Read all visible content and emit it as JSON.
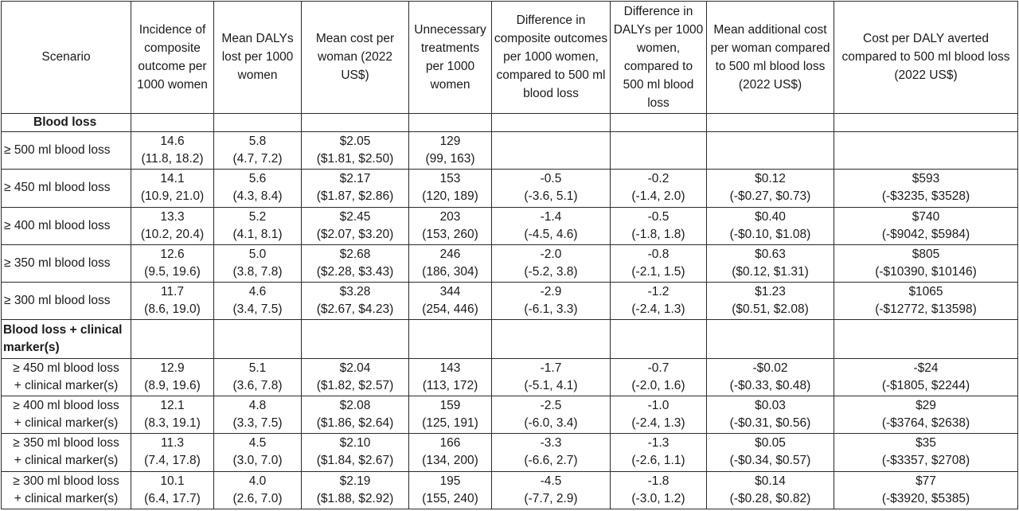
{
  "headers": [
    "Scenario",
    "Incidence of composite outcome per 1000 women",
    "Mean DALYs lost per 1000 women",
    "Mean cost per woman (2022 US$)",
    "Unnecessary treatments per 1000 women",
    "Difference in composite outcomes per 1000 women, compared to 500 ml blood loss",
    "Difference in DALYs per 1000 women, compared to 500 ml blood loss",
    "Mean additional cost per woman compared to 500 ml blood loss (2022 US$)",
    "Cost per DALY averted compared to 500 ml blood loss (2022 US$)"
  ],
  "section1": "Blood loss",
  "rows1": [
    {
      "scenario": "≥ 500 ml blood loss",
      "cells": [
        [
          "14.6",
          "(11.8, 18.2)"
        ],
        [
          "5.8",
          "(4.7, 7.2)"
        ],
        [
          "$2.05",
          "($1.81, $2.50)"
        ],
        [
          "129",
          "(99, 163)"
        ],
        [
          "",
          ""
        ],
        [
          "",
          ""
        ],
        [
          "",
          ""
        ],
        [
          "",
          ""
        ]
      ]
    },
    {
      "scenario": "≥ 450 ml blood loss",
      "cells": [
        [
          "14.1",
          "(10.9, 21.0)"
        ],
        [
          "5.6",
          "(4.3, 8.4)"
        ],
        [
          "$2.17",
          "($1.87, $2.86)"
        ],
        [
          "153",
          "(120, 189)"
        ],
        [
          "-0.5",
          "(-3.6, 5.1)"
        ],
        [
          "-0.2",
          "(-1.4, 2.0)"
        ],
        [
          "$0.12",
          "(-$0.27, $0.73)"
        ],
        [
          "$593",
          "(-$3235, $3528)"
        ]
      ]
    },
    {
      "scenario": "≥ 400 ml blood loss",
      "cells": [
        [
          "13.3",
          "(10.2, 20.4)"
        ],
        [
          "5.2",
          "(4.1, 8.1)"
        ],
        [
          "$2.45",
          "($2.07, $3.20)"
        ],
        [
          "203",
          "(153, 260)"
        ],
        [
          "-1.4",
          "(-4.5, 4.6)"
        ],
        [
          "-0.5",
          "(-1.8, 1.8)"
        ],
        [
          "$0.40",
          "(-$0.10, $1.08)"
        ],
        [
          "$740",
          "(-$9042, $5984)"
        ]
      ]
    },
    {
      "scenario": "≥ 350 ml blood loss",
      "cells": [
        [
          "12.6",
          "(9.5, 19.6)"
        ],
        [
          "5.0",
          "(3.8, 7.8)"
        ],
        [
          "$2.68",
          "($2.28, $3.43)"
        ],
        [
          "246",
          "(186, 304)"
        ],
        [
          "-2.0",
          "(-5.2, 3.8)"
        ],
        [
          "-0.8",
          "(-2.1, 1.5)"
        ],
        [
          "$0.63",
          "($0.12, $1.31)"
        ],
        [
          "$805",
          "(-$10390, $10146)"
        ]
      ]
    },
    {
      "scenario": "≥ 300 ml blood loss",
      "cells": [
        [
          "11.7",
          "(8.6, 19.0)"
        ],
        [
          "4.6",
          "(3.4, 7.5)"
        ],
        [
          "$3.28",
          "($2.67, $4.23)"
        ],
        [
          "344",
          "(254, 446)"
        ],
        [
          "-2.9",
          "(-6.1, 3.3)"
        ],
        [
          "-1.2",
          "(-2.4, 1.3)"
        ],
        [
          "$1.23",
          "($0.51, $2.08)"
        ],
        [
          "$1065",
          "(-$12772, $13598)"
        ]
      ]
    }
  ],
  "section2": "Blood loss + clinical marker(s)",
  "rows2": [
    {
      "scenario": [
        "≥ 450 ml blood loss",
        "+ clinical marker(s)"
      ],
      "cells": [
        [
          "12.9",
          "(8.9, 19.6)"
        ],
        [
          "5.1",
          "(3.6, 7.8)"
        ],
        [
          "$2.04",
          "($1.82, $2.57)"
        ],
        [
          "143",
          "(113, 172)"
        ],
        [
          "-1.7",
          "(-5.1, 4.1)"
        ],
        [
          "-0.7",
          "(-2.0, 1.6)"
        ],
        [
          "-$0.02",
          "(-$0.33, $0.48)"
        ],
        [
          "-$24",
          "(-$1805, $2244)"
        ]
      ]
    },
    {
      "scenario": [
        "≥ 400 ml blood loss",
        "+ clinical marker(s)"
      ],
      "cells": [
        [
          "12.1",
          "(8.3, 19.1)"
        ],
        [
          "4.8",
          "(3.3, 7.5)"
        ],
        [
          "$2.08",
          "($1.86, $2.64)"
        ],
        [
          "159",
          "(125, 191)"
        ],
        [
          "-2.5",
          "(-6.0, 3.4)"
        ],
        [
          "-1.0",
          "(-2.4, 1.3)"
        ],
        [
          "$0.03",
          "(-$0.31, $0.56)"
        ],
        [
          "$29",
          "(-$3764, $2638)"
        ]
      ]
    },
    {
      "scenario": [
        "≥ 350 ml blood loss",
        "+ clinical marker(s)"
      ],
      "cells": [
        [
          "11.3",
          "(7.4, 17.8)"
        ],
        [
          "4.5",
          "(3.0, 7.0)"
        ],
        [
          "$2.10",
          "($1.84, $2.67)"
        ],
        [
          "166",
          "(134, 200)"
        ],
        [
          "-3.3",
          "(-6.6, 2.7)"
        ],
        [
          "-1.3",
          "(-2.6, 1.1)"
        ],
        [
          "$0.05",
          "(-$0.34, $0.57)"
        ],
        [
          "$35",
          "(-$3357, $2708)"
        ]
      ]
    },
    {
      "scenario": [
        "≥ 300 ml blood loss",
        "+ clinical marker(s)"
      ],
      "cells": [
        [
          "10.1",
          "(6.4, 17.7)"
        ],
        [
          "4.0",
          "(2.6, 7.0)"
        ],
        [
          "$2.19",
          "($1.88, $2.92)"
        ],
        [
          "195",
          "(155, 240)"
        ],
        [
          "-4.5",
          "(-7.7, 2.9)"
        ],
        [
          "-1.8",
          "(-3.0, 1.2)"
        ],
        [
          "$0.14",
          "(-$0.28, $0.82)"
        ],
        [
          "$77",
          "(-$3920, $5385)"
        ]
      ]
    }
  ]
}
